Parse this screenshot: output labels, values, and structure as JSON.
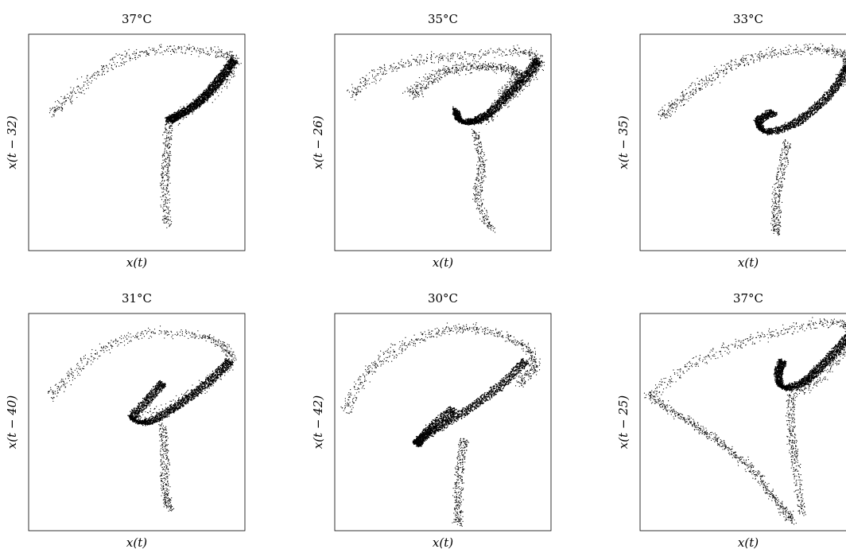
{
  "chart_data": [
    {
      "type": "scatter",
      "title": "37°C",
      "xlabel": "x(t)",
      "ylabel": "x(t − 32)",
      "xlim": [
        0,
        1
      ],
      "ylim": [
        0,
        1
      ],
      "grid": false,
      "axis_ticks": "none",
      "points_note": "delay-embedding phase portrait; no numeric ticks shown",
      "shape": {
        "outer_loop": [
          [
            0.11,
            0.64
          ],
          [
            0.2,
            0.72
          ],
          [
            0.35,
            0.84
          ],
          [
            0.5,
            0.91
          ],
          [
            0.7,
            0.93
          ],
          [
            0.88,
            0.91
          ],
          [
            0.95,
            0.88
          ],
          [
            0.9,
            0.78
          ],
          [
            0.78,
            0.68
          ],
          [
            0.66,
            0.6
          ]
        ],
        "dense_path": [
          [
            0.95,
            0.88
          ],
          [
            0.9,
            0.81
          ],
          [
            0.84,
            0.74
          ],
          [
            0.78,
            0.68
          ],
          [
            0.7,
            0.63
          ],
          [
            0.65,
            0.6
          ]
        ],
        "tail": [
          [
            0.65,
            0.6
          ],
          [
            0.64,
            0.45
          ],
          [
            0.63,
            0.3
          ],
          [
            0.64,
            0.12
          ]
        ]
      }
    },
    {
      "type": "scatter",
      "title": "35°C",
      "xlabel": "x(t)",
      "ylabel": "x(t − 26)",
      "xlim": [
        0,
        1
      ],
      "ylim": [
        0,
        1
      ],
      "grid": false,
      "axis_ticks": "none",
      "shape": {
        "outer_loop": [
          [
            0.08,
            0.72
          ],
          [
            0.2,
            0.82
          ],
          [
            0.4,
            0.88
          ],
          [
            0.6,
            0.9
          ],
          [
            0.85,
            0.92
          ],
          [
            0.94,
            0.88
          ],
          [
            0.9,
            0.8
          ],
          [
            0.8,
            0.7
          ],
          [
            0.7,
            0.6
          ]
        ],
        "inner_loop": [
          [
            0.35,
            0.72
          ],
          [
            0.5,
            0.82
          ],
          [
            0.7,
            0.85
          ],
          [
            0.85,
            0.82
          ],
          [
            0.78,
            0.72
          ]
        ],
        "dense_path": [
          [
            0.94,
            0.88
          ],
          [
            0.88,
            0.8
          ],
          [
            0.8,
            0.72
          ],
          [
            0.72,
            0.64
          ],
          [
            0.65,
            0.6
          ],
          [
            0.58,
            0.6
          ],
          [
            0.56,
            0.65
          ]
        ],
        "tail": [
          [
            0.65,
            0.55
          ],
          [
            0.68,
            0.4
          ],
          [
            0.66,
            0.25
          ],
          [
            0.72,
            0.1
          ]
        ]
      }
    },
    {
      "type": "scatter",
      "title": "33°C",
      "xlabel": "x(t)",
      "ylabel": "x(t − 35)",
      "xlim": [
        0,
        1
      ],
      "ylim": [
        0,
        1
      ],
      "grid": false,
      "axis_ticks": "none",
      "shape": {
        "outer_loop": [
          [
            0.1,
            0.62
          ],
          [
            0.22,
            0.72
          ],
          [
            0.4,
            0.84
          ],
          [
            0.6,
            0.91
          ],
          [
            0.85,
            0.93
          ],
          [
            0.96,
            0.88
          ],
          [
            0.93,
            0.78
          ]
        ],
        "dense_path": [
          [
            0.96,
            0.85
          ],
          [
            0.9,
            0.75
          ],
          [
            0.8,
            0.65
          ],
          [
            0.7,
            0.58
          ],
          [
            0.58,
            0.55
          ],
          [
            0.55,
            0.6
          ],
          [
            0.62,
            0.64
          ]
        ],
        "tail": [
          [
            0.68,
            0.5
          ],
          [
            0.65,
            0.35
          ],
          [
            0.63,
            0.2
          ],
          [
            0.63,
            0.08
          ]
        ]
      }
    },
    {
      "type": "scatter",
      "title": "31°C",
      "xlabel": "x(t)",
      "ylabel": "x(t − 40)",
      "xlim": [
        0,
        1
      ],
      "ylim": [
        0,
        1
      ],
      "grid": false,
      "axis_ticks": "none",
      "shape": {
        "outer_loop": [
          [
            0.1,
            0.62
          ],
          [
            0.2,
            0.72
          ],
          [
            0.35,
            0.84
          ],
          [
            0.55,
            0.91
          ],
          [
            0.78,
            0.9
          ],
          [
            0.9,
            0.85
          ],
          [
            0.93,
            0.78
          ],
          [
            0.85,
            0.7
          ],
          [
            0.7,
            0.6
          ],
          [
            0.5,
            0.52
          ]
        ],
        "dense_path": [
          [
            0.93,
            0.78
          ],
          [
            0.85,
            0.7
          ],
          [
            0.75,
            0.62
          ],
          [
            0.65,
            0.55
          ],
          [
            0.55,
            0.5
          ],
          [
            0.48,
            0.52
          ],
          [
            0.55,
            0.6
          ],
          [
            0.62,
            0.68
          ]
        ],
        "tail": [
          [
            0.62,
            0.48
          ],
          [
            0.63,
            0.35
          ],
          [
            0.63,
            0.2
          ],
          [
            0.65,
            0.1
          ]
        ]
      }
    },
    {
      "type": "scatter",
      "title": "30°C",
      "xlabel": "x(t)",
      "ylabel": "x(t − 42)",
      "xlim": [
        0,
        1
      ],
      "ylim": [
        0,
        1
      ],
      "grid": false,
      "axis_ticks": "none",
      "shape": {
        "outer_loop": [
          [
            0.05,
            0.55
          ],
          [
            0.15,
            0.72
          ],
          [
            0.3,
            0.84
          ],
          [
            0.5,
            0.92
          ],
          [
            0.7,
            0.92
          ],
          [
            0.88,
            0.85
          ],
          [
            0.92,
            0.75
          ],
          [
            0.85,
            0.68
          ]
        ],
        "dense_path": [
          [
            0.88,
            0.78
          ],
          [
            0.78,
            0.68
          ],
          [
            0.65,
            0.58
          ],
          [
            0.52,
            0.5
          ],
          [
            0.42,
            0.44
          ],
          [
            0.38,
            0.4
          ],
          [
            0.45,
            0.48
          ],
          [
            0.55,
            0.56
          ]
        ],
        "tail": [
          [
            0.6,
            0.42
          ],
          [
            0.58,
            0.3
          ],
          [
            0.57,
            0.15
          ],
          [
            0.57,
            0.03
          ]
        ]
      }
    },
    {
      "type": "scatter",
      "title": "37°C",
      "xlabel": "x(t)",
      "ylabel": "x(t − 25)",
      "xlim": [
        0,
        1
      ],
      "ylim": [
        0,
        1
      ],
      "grid": false,
      "axis_ticks": "none",
      "shape": {
        "outer_loop": [
          [
            0.05,
            0.62
          ],
          [
            0.2,
            0.74
          ],
          [
            0.4,
            0.84
          ],
          [
            0.6,
            0.9
          ],
          [
            0.8,
            0.95
          ],
          [
            0.95,
            0.95
          ],
          [
            0.98,
            0.88
          ],
          [
            0.9,
            0.78
          ],
          [
            0.8,
            0.68
          ],
          [
            0.7,
            0.64
          ]
        ],
        "dense_path": [
          [
            0.97,
            0.9
          ],
          [
            0.9,
            0.82
          ],
          [
            0.82,
            0.74
          ],
          [
            0.75,
            0.68
          ],
          [
            0.66,
            0.66
          ],
          [
            0.64,
            0.72
          ],
          [
            0.66,
            0.78
          ]
        ],
        "diagonal_arm": [
          [
            0.05,
            0.62
          ],
          [
            0.2,
            0.52
          ],
          [
            0.35,
            0.42
          ],
          [
            0.5,
            0.3
          ],
          [
            0.62,
            0.15
          ],
          [
            0.7,
            0.05
          ]
        ],
        "tail": [
          [
            0.7,
            0.62
          ],
          [
            0.7,
            0.45
          ],
          [
            0.72,
            0.3
          ],
          [
            0.75,
            0.08
          ]
        ]
      }
    }
  ]
}
